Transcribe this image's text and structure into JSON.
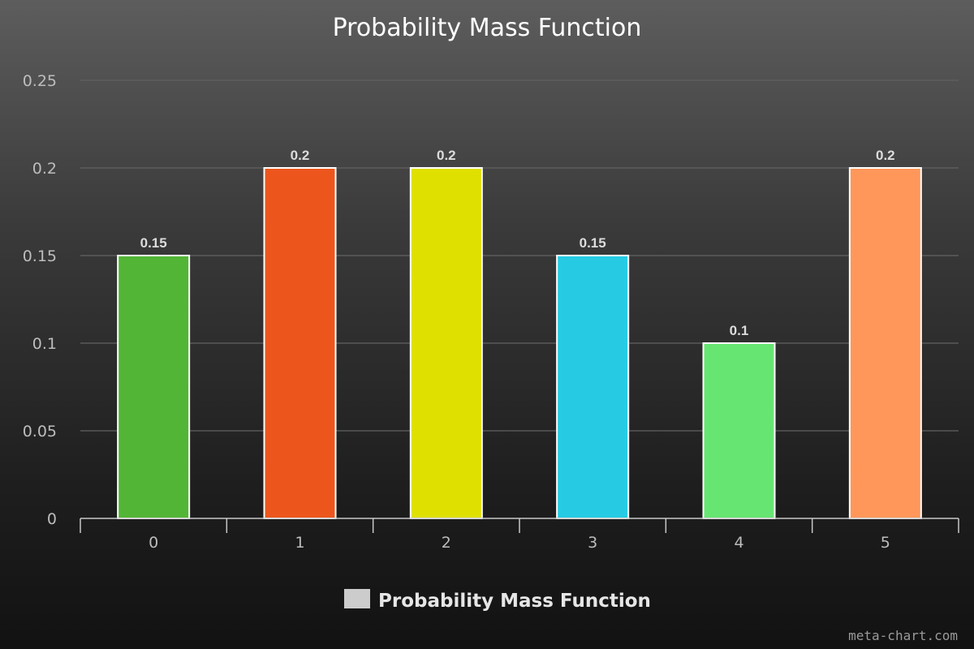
{
  "chart_data": {
    "type": "bar",
    "title": "Probability Mass Function",
    "xlabel": "",
    "ylabel": "",
    "categories": [
      "0",
      "1",
      "2",
      "3",
      "4",
      "5"
    ],
    "series": [
      {
        "name": "Probability Mass Function",
        "values": [
          0.15,
          0.2,
          0.2,
          0.15,
          0.1,
          0.2
        ]
      }
    ],
    "data_labels": [
      "0.15",
      "0.2",
      "0.2",
      "0.15",
      "0.1",
      "0.2"
    ],
    "bar_colors": [
      "#53b536",
      "#ec561d",
      "#dfe000",
      "#26cbe3",
      "#67e572",
      "#ff975a"
    ],
    "ylim": [
      0,
      0.25
    ],
    "yticks": [
      0,
      0.05,
      0.1,
      0.15,
      0.2,
      0.25
    ],
    "ytick_labels": [
      "0",
      "0.05",
      "0.1",
      "0.15",
      "0.2",
      "0.25"
    ],
    "grid": true,
    "legend": {
      "position": "bottom-center",
      "swatch_color": "#cccccc"
    }
  },
  "credit": "meta-chart.com"
}
